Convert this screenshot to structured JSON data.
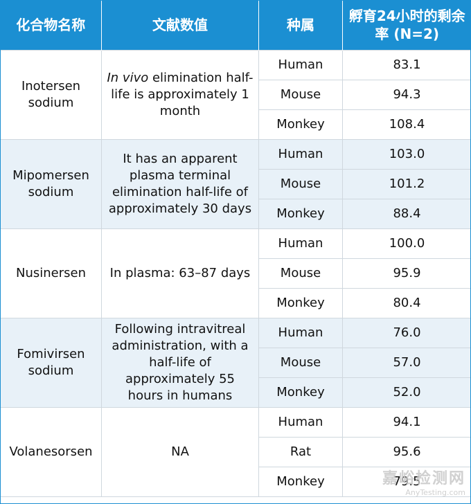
{
  "headers": [
    "化合物名称",
    "文献数值",
    "种属",
    "孵育24小时的剩余率 (N=2)"
  ],
  "groups": [
    {
      "compound": "Inotersen sodium",
      "lit_italic": "In vivo",
      "literature": " elimination half-life is approximately 1 month",
      "rows": [
        {
          "species": "Human",
          "value": "83.1"
        },
        {
          "species": "Mouse",
          "value": "94.3"
        },
        {
          "species": "Monkey",
          "value": "108.4"
        }
      ]
    },
    {
      "compound": "Mipomersen sodium",
      "lit_italic": "",
      "literature": "It has an apparent plasma terminal elimination half-life of approximately 30 days",
      "rows": [
        {
          "species": "Human",
          "value": "103.0"
        },
        {
          "species": "Mouse",
          "value": "101.2"
        },
        {
          "species": "Monkey",
          "value": "88.4"
        }
      ]
    },
    {
      "compound": "Nusinersen",
      "lit_italic": "",
      "literature": "In plasma: 63–87 days",
      "rows": [
        {
          "species": "Human",
          "value": "100.0"
        },
        {
          "species": "Mouse",
          "value": "95.9"
        },
        {
          "species": "Monkey",
          "value": "80.4"
        }
      ]
    },
    {
      "compound": "Fomivirsen sodium",
      "lit_italic": "",
      "literature": "Following intravitreal administration, with a half-life of approximately 55 hours in humans",
      "rows": [
        {
          "species": "Human",
          "value": "76.0"
        },
        {
          "species": "Mouse",
          "value": "57.0"
        },
        {
          "species": "Monkey",
          "value": "52.0"
        }
      ]
    },
    {
      "compound": "Volanesorsen",
      "lit_italic": "",
      "literature": "NA",
      "rows": [
        {
          "species": "Human",
          "value": "94.1"
        },
        {
          "species": "Rat",
          "value": "95.6"
        },
        {
          "species": "Monkey",
          "value": "79.5"
        }
      ]
    }
  ],
  "watermark": {
    "cn": "嘉峪检测网",
    "en": "AnyTesting.com"
  },
  "colors": {
    "header": "#1b8fd2",
    "alt_row": "#e8f1f8",
    "border": "#cfd7de"
  }
}
